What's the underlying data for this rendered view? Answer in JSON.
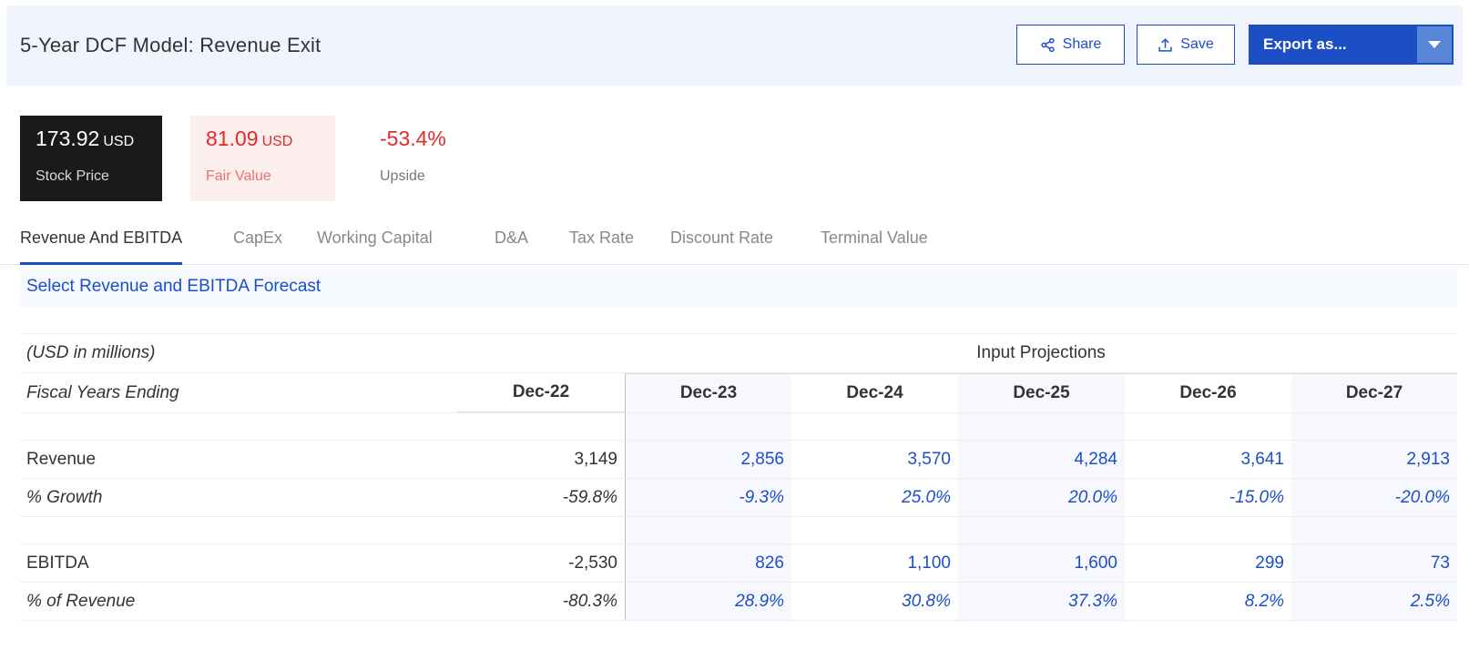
{
  "header": {
    "title": "5-Year DCF Model: Revenue Exit",
    "share_label": "Share",
    "save_label": "Save",
    "export_label": "Export as..."
  },
  "stats": {
    "stock_price": {
      "value": "173.92",
      "unit": "USD",
      "label": "Stock Price"
    },
    "fair_value": {
      "value": "81.09",
      "unit": "USD",
      "label": "Fair Value"
    },
    "upside": {
      "value": "-53.4%",
      "label": "Upside"
    }
  },
  "tabs": [
    {
      "label": "Revenue And EBITDA"
    },
    {
      "label": "CapEx"
    },
    {
      "label": "Working Capital"
    },
    {
      "label": "D&A"
    },
    {
      "label": "Tax Rate"
    },
    {
      "label": "Discount Rate"
    },
    {
      "label": "Terminal Value"
    }
  ],
  "section_title": "Select Revenue and EBITDA Forecast",
  "table": {
    "units_note": "(USD in millions)",
    "projections_header": "Input Projections",
    "fiscal_label": "Fiscal Years Ending",
    "years": [
      "Dec-22",
      "Dec-23",
      "Dec-24",
      "Dec-25",
      "Dec-26",
      "Dec-27"
    ],
    "revenue_label": "Revenue",
    "revenue": [
      "3,149",
      "2,856",
      "3,570",
      "4,284",
      "3,641",
      "2,913"
    ],
    "growth_label": "% Growth",
    "growth": [
      "-59.8%",
      "-9.3%",
      "25.0%",
      "20.0%",
      "-15.0%",
      "-20.0%"
    ],
    "ebitda_label": "EBITDA",
    "ebitda": [
      "-2,530",
      "826",
      "1,100",
      "1,600",
      "299",
      "73"
    ],
    "margin_label": "% of Revenue",
    "margin": [
      "-80.3%",
      "28.9%",
      "30.8%",
      "37.3%",
      "8.2%",
      "2.5%"
    ]
  },
  "colors": {
    "accent": "#1c4fc5",
    "negative": "#e02b2b",
    "header_bg": "#f0f5fd"
  }
}
